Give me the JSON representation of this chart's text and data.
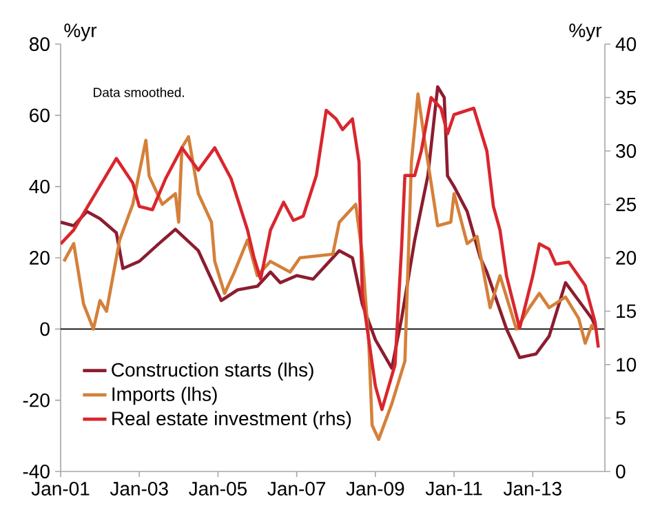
{
  "chart_data": {
    "type": "line",
    "ylabel": "%yr",
    "y2label": "%yr",
    "annotations": [
      "Data smoothed."
    ],
    "xlim": [
      "2001-01",
      "2014-11"
    ],
    "xticks": [
      {
        "value": "2001-01",
        "label": "Jan-01"
      },
      {
        "value": "2003-01",
        "label": "Jan-03"
      },
      {
        "value": "2005-01",
        "label": "Jan-05"
      },
      {
        "value": "2007-01",
        "label": "Jan-07"
      },
      {
        "value": "2009-01",
        "label": "Jan-09"
      },
      {
        "value": "2011-01",
        "label": "Jan-11"
      },
      {
        "value": "2013-01",
        "label": "Jan-13"
      }
    ],
    "ylim": [
      -40,
      80
    ],
    "yticks": [
      -40,
      -20,
      0,
      20,
      40,
      60,
      80
    ],
    "y2lim": [
      0,
      40
    ],
    "y2ticks": [
      0,
      5,
      10,
      15,
      20,
      25,
      30,
      35,
      40
    ],
    "ref_lines": [
      {
        "axis": "y",
        "value": 0,
        "color": "#000000"
      }
    ],
    "legend": "bottom left",
    "series": [
      {
        "name": "Construction starts (lhs)",
        "color": "#8c1d2f",
        "x": [
          "2001-01",
          "2001-05",
          "2001-09",
          "2002-01",
          "2002-06",
          "2002-08",
          "2003-01",
          "2003-07",
          "2003-12",
          "2004-07",
          "2005-02",
          "2005-07",
          "2006-01",
          "2006-05",
          "2006-08",
          "2007-01",
          "2007-06",
          "2007-11",
          "2008-02",
          "2008-06",
          "2008-09",
          "2009-01",
          "2009-06",
          "2009-09",
          "2010-01",
          "2010-05",
          "2010-08",
          "2010-10",
          "2010-11",
          "2011-01",
          "2011-05",
          "2011-09",
          "2011-11",
          "2012-05",
          "2012-09",
          "2013-02",
          "2013-06",
          "2013-08",
          "2013-11",
          "2014-03",
          "2014-07",
          "2014-08"
        ],
        "values": [
          30,
          29,
          33,
          31,
          27,
          17,
          19,
          24,
          28,
          22,
          8,
          11,
          12,
          16,
          13,
          15,
          14,
          19,
          22,
          20,
          7,
          -3,
          -11,
          3,
          25,
          43,
          68,
          65,
          43,
          40,
          33,
          20,
          16,
          0,
          -8,
          -7,
          -2,
          4,
          13,
          8,
          3,
          1
        ]
      },
      {
        "name": "Imports (lhs)",
        "color": "#d4803a",
        "x": [
          "2001-02",
          "2001-05",
          "2001-08",
          "2001-11",
          "2002-01",
          "2002-03",
          "2002-05",
          "2002-07",
          "2002-11",
          "2003-03",
          "2003-04",
          "2003-08",
          "2003-12",
          "2004-01",
          "2004-02",
          "2004-04",
          "2004-07",
          "2004-11",
          "2004-12",
          "2005-03",
          "2005-06",
          "2005-10",
          "2006-01",
          "2006-05",
          "2006-11",
          "2007-02",
          "2007-12",
          "2008-02",
          "2008-07",
          "2008-09",
          "2008-11",
          "2008-12",
          "2009-02",
          "2009-06",
          "2009-10",
          "2009-12",
          "2010-02",
          "2010-04",
          "2010-08",
          "2010-12",
          "2011-01",
          "2011-05",
          "2011-08",
          "2011-12",
          "2012-03",
          "2012-08",
          "2012-12",
          "2013-03",
          "2013-06",
          "2013-11",
          "2014-03",
          "2014-05",
          "2014-07",
          "2014-08"
        ],
        "values": [
          19,
          24,
          7,
          0,
          8,
          5,
          15,
          25,
          35,
          53,
          43,
          35,
          38,
          30,
          51,
          54,
          38,
          30,
          19,
          10,
          16,
          25,
          15,
          19,
          16,
          20,
          21,
          30,
          35,
          21,
          -4,
          -27,
          -31,
          -21,
          -9,
          47,
          66,
          53,
          29,
          30,
          38,
          24,
          26,
          6,
          15,
          0,
          6,
          10,
          6,
          9,
          3,
          -4,
          1,
          0
        ]
      },
      {
        "name": "Real estate investment (rhs)",
        "color": "#d9262e",
        "axis": "y2",
        "x": [
          "2001-01",
          "2001-05",
          "2001-11",
          "2002-06",
          "2002-11",
          "2003-01",
          "2003-05",
          "2003-09",
          "2004-02",
          "2004-07",
          "2004-12",
          "2005-05",
          "2005-10",
          "2005-12",
          "2006-02",
          "2006-05",
          "2006-09",
          "2006-12",
          "2007-03",
          "2007-07",
          "2007-10",
          "2008-01",
          "2008-03",
          "2008-06",
          "2008-08",
          "2008-09",
          "2009-01",
          "2009-03",
          "2009-07",
          "2009-09",
          "2009-10",
          "2010-01",
          "2010-03",
          "2010-06",
          "2010-09",
          "2010-11",
          "2011-01",
          "2011-07",
          "2011-11",
          "2012-01",
          "2012-03",
          "2012-05",
          "2012-09",
          "2013-01",
          "2013-03",
          "2013-06",
          "2013-08",
          "2013-12",
          "2014-05",
          "2014-08",
          "2014-09"
        ],
        "values": [
          21.3,
          22.6,
          25.7,
          29.3,
          27,
          24.8,
          24.5,
          27.4,
          30.3,
          28.2,
          30.3,
          27.4,
          22.6,
          20,
          18,
          22.6,
          25.2,
          23.5,
          23.9,
          27.7,
          33.8,
          33,
          32,
          33,
          29,
          16.6,
          8,
          5.8,
          10,
          21,
          27.7,
          27.7,
          30,
          35,
          34,
          31.6,
          33.4,
          34,
          30,
          24.8,
          22.6,
          18.3,
          13.4,
          18.3,
          21.3,
          20.8,
          19.4,
          19.6,
          17.4,
          14,
          11.6
        ]
      }
    ]
  }
}
